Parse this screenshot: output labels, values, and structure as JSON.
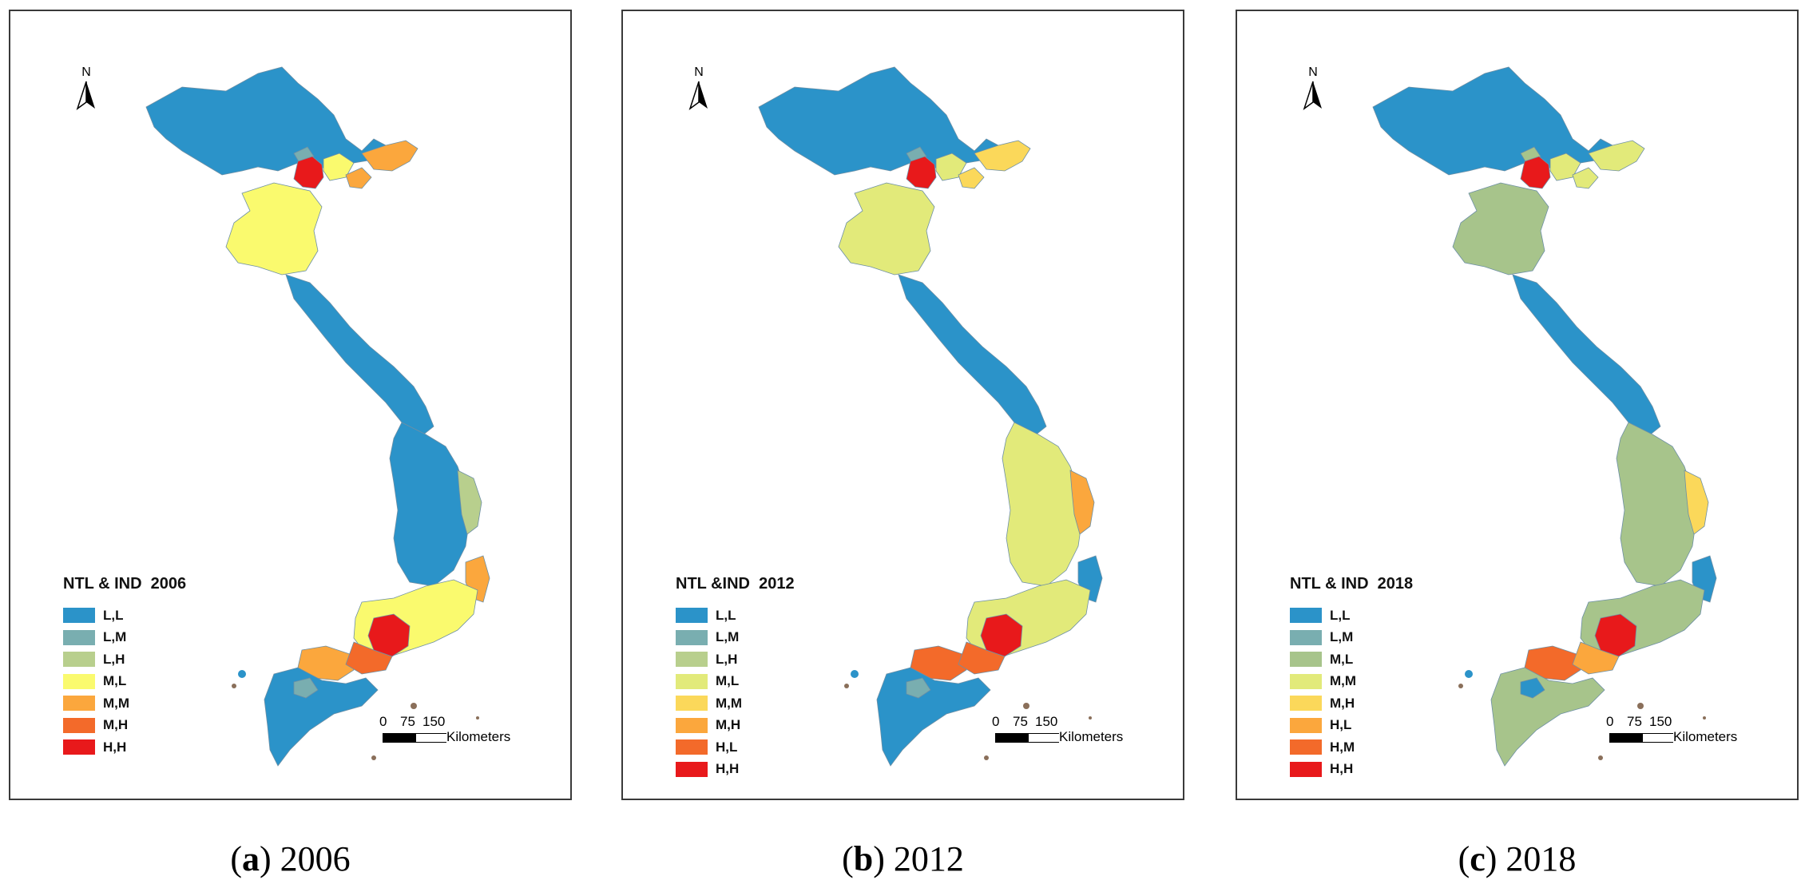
{
  "colors": {
    "L,L": "#2b93c9",
    "L,M": "#6faeb0",
    "L,H": "#a7c48b",
    "M,L": "#f7f56e",
    "M,M": "#f9a53a",
    "M,H": "#f36a2a",
    "H,H": "#e8191b",
    "coast": "#8a6f5a"
  },
  "panels": [
    {
      "north": "N",
      "legend_title": "NTL & IND  2006",
      "legend": [
        {
          "label": "L,L",
          "color": "#2b93c9"
        },
        {
          "label": "L,M",
          "color": "#79aeb0"
        },
        {
          "label": "L,H",
          "color": "#b8cf8d"
        },
        {
          "label": "M,L",
          "color": "#fafa6e"
        },
        {
          "label": "M,M",
          "color": "#fba73d"
        },
        {
          "label": "M,H",
          "color": "#f36a2a"
        },
        {
          "label": "H,H",
          "color": "#e8191b"
        }
      ],
      "scale": {
        "ticks": [
          "0",
          "75",
          "150"
        ],
        "unit": "Kilometers"
      },
      "caption_letter": "a",
      "caption_year": "2006",
      "regions": {
        "north_block": "#2b93c9",
        "hanoi": "#e8191b",
        "delta_a": "#79aeb0",
        "delta_b": "#fafa6e",
        "delta_c": "#fba73d",
        "northeast_coast": "#fba73d",
        "north_central": "#fafa6e",
        "central_strip": "#2b93c9",
        "central_highlands": "#2b93c9",
        "east_coast_mid": "#b8cf8d",
        "east_coast_south": "#fba73d",
        "southeast": "#fafa6e",
        "saigon": "#e8191b",
        "saigon_ring": "#f36a2a",
        "delta_west": "#fba73d",
        "mekong": "#2b93c9",
        "mekong_small": "#79aeb0"
      }
    },
    {
      "north": "N",
      "legend_title": "NTL &IND  2012",
      "legend": [
        {
          "label": "L,L",
          "color": "#2b93c9"
        },
        {
          "label": "L,M",
          "color": "#79aeb0"
        },
        {
          "label": "L,H",
          "color": "#b8cf8d"
        },
        {
          "label": "M,L",
          "color": "#e2ea7a"
        },
        {
          "label": "M,M",
          "color": "#fbd85a"
        },
        {
          "label": "M,H",
          "color": "#fba73d"
        },
        {
          "label": "H,L",
          "color": "#f36a2a"
        },
        {
          "label": "H,H",
          "color": "#e8191b"
        }
      ],
      "scale": {
        "ticks": [
          "0",
          "75",
          "150"
        ],
        "unit": "Kilometers"
      },
      "caption_letter": "b",
      "caption_year": "2012",
      "regions": {
        "north_block": "#2b93c9",
        "hanoi": "#e8191b",
        "delta_a": "#79aeb0",
        "delta_b": "#e2ea7a",
        "delta_c": "#fbd85a",
        "northeast_coast": "#fbd85a",
        "north_central": "#e2ea7a",
        "central_strip": "#2b93c9",
        "central_highlands": "#e2ea7a",
        "east_coast_mid": "#fba73d",
        "east_coast_south": "#2b93c9",
        "southeast": "#e2ea7a",
        "saigon": "#e8191b",
        "saigon_ring": "#f36a2a",
        "delta_west": "#f36a2a",
        "mekong": "#2b93c9",
        "mekong_small": "#79aeb0"
      }
    },
    {
      "north": "N",
      "legend_title": "NTL & IND  2018",
      "legend": [
        {
          "label": "L,L",
          "color": "#2b93c9"
        },
        {
          "label": "L,M",
          "color": "#79aeb0"
        },
        {
          "label": "M,L",
          "color": "#a7c48b"
        },
        {
          "label": "M,M",
          "color": "#e2ea7a"
        },
        {
          "label": "M,H",
          "color": "#fbd85a"
        },
        {
          "label": "H,L",
          "color": "#fba73d"
        },
        {
          "label": "H,M",
          "color": "#f36a2a"
        },
        {
          "label": "H,H",
          "color": "#e8191b"
        }
      ],
      "scale": {
        "ticks": [
          "0",
          "75",
          "150"
        ],
        "unit": "Kilometers"
      },
      "caption_letter": "c",
      "caption_year": "2018",
      "regions": {
        "north_block": "#2b93c9",
        "hanoi": "#e8191b",
        "delta_a": "#a7c48b",
        "delta_b": "#e2ea7a",
        "delta_c": "#e2ea7a",
        "northeast_coast": "#e2ea7a",
        "north_central": "#a7c48b",
        "central_strip": "#2b93c9",
        "central_highlands": "#a7c48b",
        "east_coast_mid": "#fbd85a",
        "east_coast_south": "#2b93c9",
        "southeast": "#a7c48b",
        "saigon": "#e8191b",
        "saigon_ring": "#fba73d",
        "delta_west": "#f36a2a",
        "mekong": "#a7c48b",
        "mekong_small": "#2b93c9"
      }
    }
  ]
}
